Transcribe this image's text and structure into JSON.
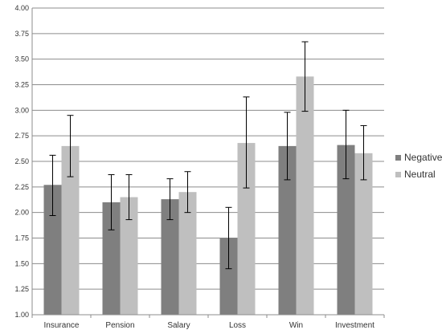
{
  "chart_data": {
    "type": "bar",
    "title": "",
    "xlabel": "",
    "ylabel": "",
    "ylim": [
      1.0,
      4.0
    ],
    "y_ticks": [
      "1.00",
      "1.25",
      "1.50",
      "1.75",
      "2.00",
      "2.25",
      "2.50",
      "2.75",
      "3.00",
      "3.25",
      "3.50",
      "3.75",
      "4.00"
    ],
    "categories": [
      "Insurance",
      "Pension",
      "Salary",
      "Loss",
      "Win",
      "Investment"
    ],
    "series": [
      {
        "name": "Negative",
        "color": "#7f7f7f",
        "values": [
          2.27,
          2.1,
          2.13,
          1.75,
          2.65,
          2.66
        ],
        "error_low": [
          1.97,
          1.83,
          1.93,
          1.45,
          2.32,
          2.33
        ],
        "error_high": [
          2.56,
          2.37,
          2.33,
          2.05,
          2.98,
          3.0
        ]
      },
      {
        "name": "Neutral",
        "color": "#bfbfbf",
        "values": [
          2.65,
          2.15,
          2.2,
          2.68,
          3.33,
          2.58
        ],
        "error_low": [
          2.35,
          1.93,
          2.0,
          2.24,
          2.99,
          2.32
        ],
        "error_high": [
          2.95,
          2.37,
          2.4,
          3.13,
          3.67,
          2.85
        ]
      }
    ],
    "grid": true,
    "legend_position": "right"
  }
}
